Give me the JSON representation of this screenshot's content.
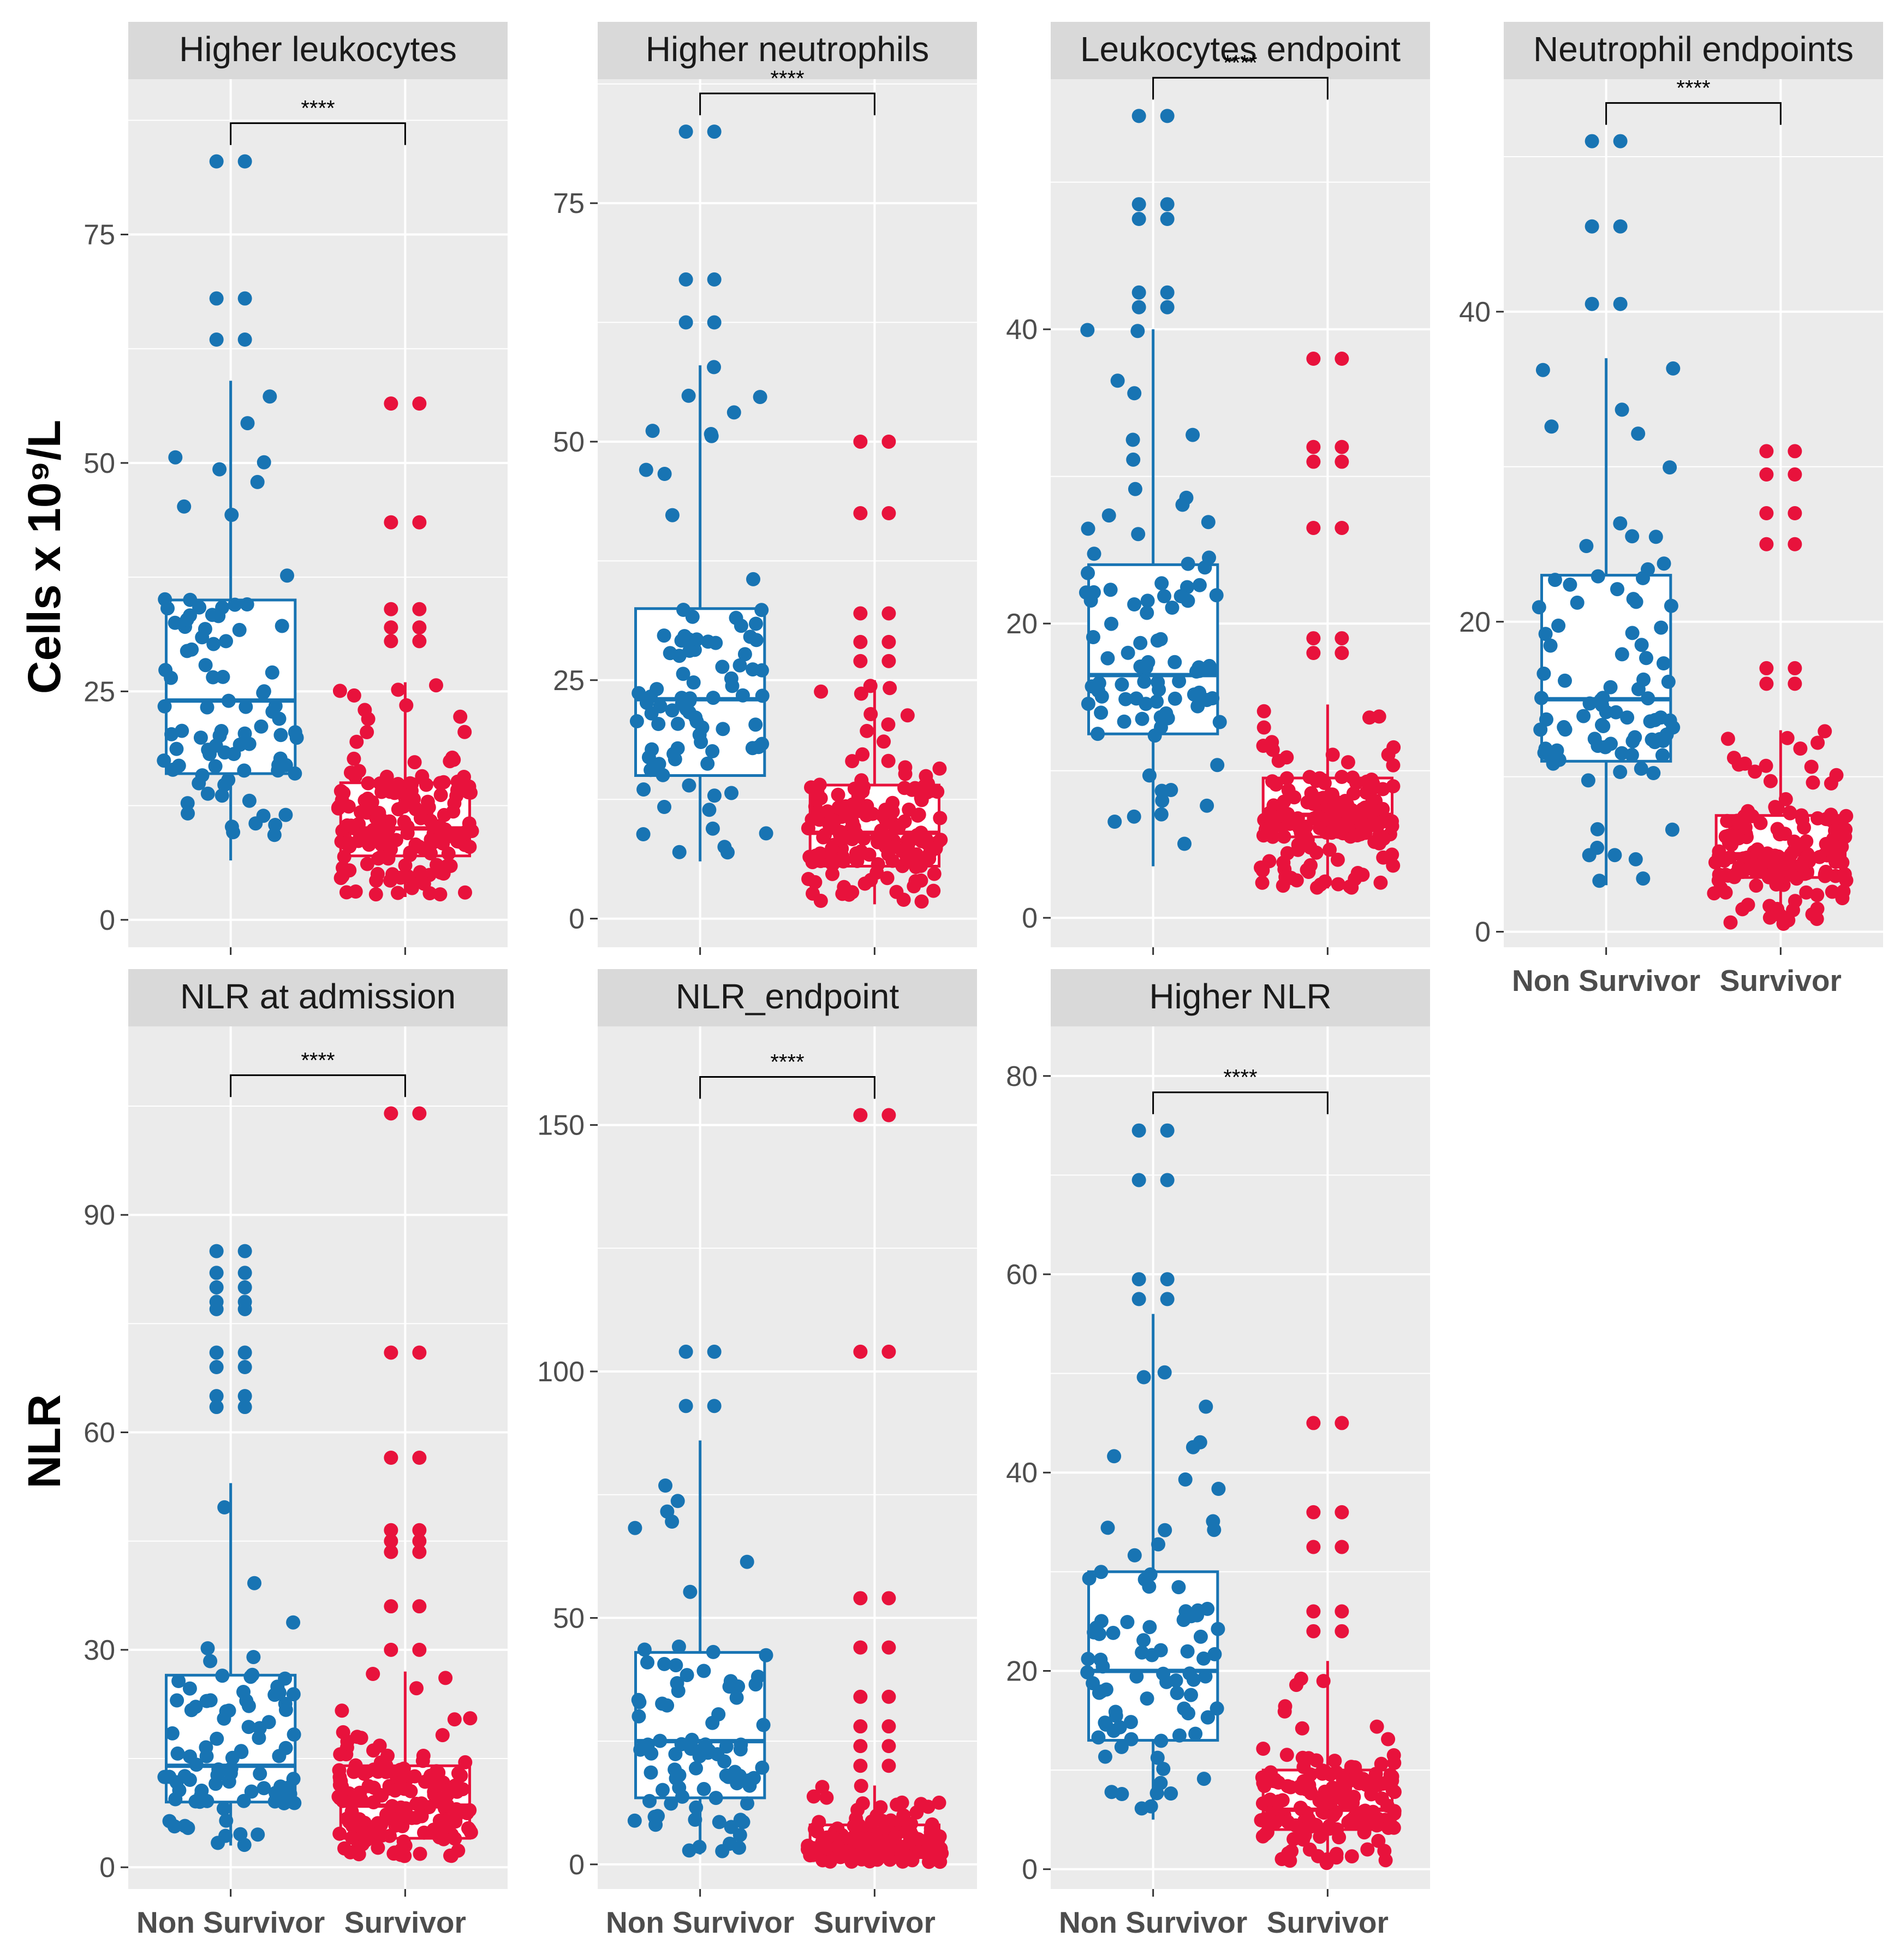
{
  "y_labels": {
    "top": "Cells x 10⁹/L",
    "bottom": "NLR"
  },
  "colors": {
    "Non Survivor": "#1874b3",
    "Survivor": "#e8123c",
    "panel_bg": "#ebebeb",
    "strip_bg": "#d9d9d9",
    "grid": "#ffffff"
  },
  "chart_data": [
    {
      "type": "box",
      "title": "Higher leukocytes",
      "categories": [
        "Non Survivor",
        "Survivor"
      ],
      "yticks": [
        0,
        25,
        50,
        75
      ],
      "ylim": [
        -3,
        92
      ],
      "show_xlabels": false,
      "significance": "****",
      "boxes": [
        {
          "group": "Non Survivor",
          "q1": 16,
          "median": 24,
          "q3": 35,
          "whisker_low": 6.5,
          "whisker_high": 59,
          "outliers": [
            63.5,
            68,
            83
          ]
        },
        {
          "group": "Survivor",
          "q1": 7,
          "median": 10,
          "q3": 15,
          "whisker_low": 2.5,
          "whisker_high": 26,
          "outliers": [
            30.5,
            32,
            34,
            43.5,
            56.5
          ]
        }
      ]
    },
    {
      "type": "box",
      "title": "Higher neutrophils",
      "categories": [
        "Non Survivor",
        "Survivor"
      ],
      "yticks": [
        0,
        25,
        50,
        75
      ],
      "ylim": [
        -3,
        88
      ],
      "show_xlabels": false,
      "significance": "****",
      "boxes": [
        {
          "group": "Non Survivor",
          "q1": 15,
          "median": 23,
          "q3": 32.5,
          "whisker_low": 6,
          "whisker_high": 58,
          "outliers": [
            62.5,
            67,
            82.5
          ]
        },
        {
          "group": "Survivor",
          "q1": 5.5,
          "median": 9,
          "q3": 14,
          "whisker_low": 1.5,
          "whisker_high": 25,
          "outliers": [
            27,
            29,
            32,
            42.5,
            50
          ]
        }
      ]
    },
    {
      "type": "box",
      "title": "Leukocytes endpoint",
      "categories": [
        "Non Survivor",
        "Survivor"
      ],
      "yticks": [
        0,
        20,
        40
      ],
      "ylim": [
        -2,
        57
      ],
      "show_xlabels": false,
      "significance": "****",
      "boxes": [
        {
          "group": "Non Survivor",
          "q1": 12.5,
          "median": 16.5,
          "q3": 24,
          "whisker_low": 3.5,
          "whisker_high": 40,
          "outliers": [
            41.5,
            42.5,
            47.5,
            48.5,
            54.5
          ]
        },
        {
          "group": "Survivor",
          "q1": 5.5,
          "median": 7,
          "q3": 9.5,
          "whisker_low": 2,
          "whisker_high": 14.5,
          "outliers": [
            18,
            19,
            26.5,
            31,
            32,
            38
          ]
        }
      ]
    },
    {
      "type": "box",
      "title": "Neutrophil endpoints",
      "categories": [
        "Non Survivor",
        "Survivor"
      ],
      "yticks": [
        0,
        20,
        40
      ],
      "ylim": [
        -1,
        55
      ],
      "show_xlabels": true,
      "significance": "****",
      "boxes": [
        {
          "group": "Non Survivor",
          "q1": 11,
          "median": 15,
          "q3": 23,
          "whisker_low": 3,
          "whisker_high": 37,
          "outliers": [
            40.5,
            45.5,
            51
          ]
        },
        {
          "group": "Survivor",
          "q1": 3.5,
          "median": 5,
          "q3": 7.5,
          "whisker_low": 0.5,
          "whisker_high": 13,
          "outliers": [
            16,
            17,
            25,
            27,
            29.5,
            31
          ]
        }
      ]
    },
    {
      "type": "box",
      "title": "NLR at admission",
      "categories": [
        "Non Survivor",
        "Survivor"
      ],
      "yticks": [
        0,
        30,
        60,
        90
      ],
      "ylim": [
        -3,
        116
      ],
      "show_xlabels": true,
      "significance": "****",
      "boxes": [
        {
          "group": "Non Survivor",
          "q1": 9,
          "median": 14,
          "q3": 26.5,
          "whisker_low": 3,
          "whisker_high": 53,
          "outliers": [
            63.5,
            65,
            69,
            71,
            77,
            78,
            80,
            82,
            85
          ]
        },
        {
          "group": "Survivor",
          "q1": 4,
          "median": 8.5,
          "q3": 14,
          "whisker_low": 1.5,
          "whisker_high": 27,
          "outliers": [
            30,
            36,
            43.5,
            45,
            46.5,
            56.5,
            71,
            104
          ]
        }
      ]
    },
    {
      "type": "box",
      "title": "NLR_endpoint",
      "categories": [
        "Non Survivor",
        "Survivor"
      ],
      "yticks": [
        0,
        50,
        100,
        150
      ],
      "ylim": [
        -5,
        170
      ],
      "show_xlabels": true,
      "significance": "****",
      "boxes": [
        {
          "group": "Non Survivor",
          "q1": 13.5,
          "median": 25,
          "q3": 43,
          "whisker_low": 2,
          "whisker_high": 86,
          "outliers": [
            93,
            104
          ]
        },
        {
          "group": "Survivor",
          "q1": 2,
          "median": 4,
          "q3": 8,
          "whisker_low": 0.5,
          "whisker_high": 16,
          "outliers": [
            20,
            24,
            28,
            34,
            44,
            54,
            104,
            152
          ]
        }
      ]
    },
    {
      "type": "box",
      "title": "Higher NLR",
      "categories": [
        "Non Survivor",
        "Survivor"
      ],
      "yticks": [
        0,
        20,
        40,
        60,
        80
      ],
      "ylim": [
        -2,
        85
      ],
      "show_xlabels": true,
      "significance": "****",
      "boxes": [
        {
          "group": "Non Survivor",
          "q1": 13,
          "median": 20,
          "q3": 30,
          "whisker_low": 5,
          "whisker_high": 56,
          "outliers": [
            57.5,
            59.5,
            69.5,
            74.5
          ]
        },
        {
          "group": "Survivor",
          "q1": 4,
          "median": 6,
          "q3": 10,
          "whisker_low": 0.5,
          "whisker_high": 21,
          "outliers": [
            24,
            26,
            32.5,
            36,
            45
          ]
        }
      ]
    }
  ]
}
